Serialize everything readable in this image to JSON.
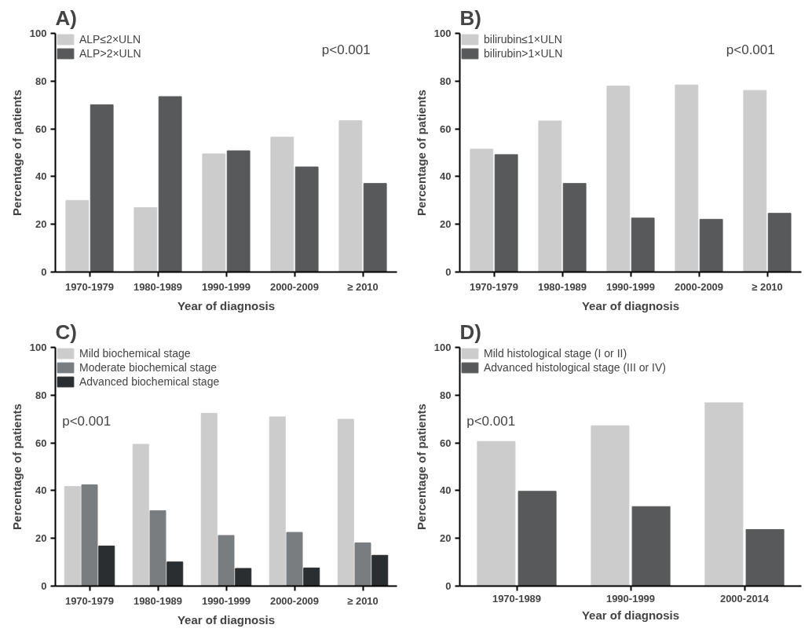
{
  "chart_data": [
    {
      "type": "bar",
      "title": "A)",
      "xlabel": "Year of diagnosis",
      "ylabel": "Percentage of patients",
      "categories": [
        "1970-1979",
        "1980-1989",
        "1990-1999",
        "2000-2009",
        "≥ 2010"
      ],
      "ylim": [
        0,
        100
      ],
      "yticks": [
        0,
        20,
        40,
        60,
        80,
        100
      ],
      "grid": false,
      "legend": "top left",
      "annotations": [
        "p<0.001"
      ],
      "series": [
        {
          "name": "ALP≤2×ULN",
          "color": "#cccccc",
          "values": [
            30,
            27,
            49.5,
            56.5,
            63.4
          ]
        },
        {
          "name": "ALP>2×ULN",
          "color": "#58595b",
          "values": [
            70.1,
            73.5,
            50.8,
            44,
            37.1
          ]
        }
      ]
    },
    {
      "type": "bar",
      "title": "B)",
      "xlabel": "Year of diagnosis",
      "ylabel": "Percentage of patients",
      "categories": [
        "1970-1979",
        "1980-1989",
        "1990-1999",
        "2000-2009",
        "≥ 2010"
      ],
      "ylim": [
        0,
        100
      ],
      "yticks": [
        0,
        20,
        40,
        60,
        80,
        100
      ],
      "grid": false,
      "legend": "top left",
      "annotations": [
        "p<0.001"
      ],
      "series": [
        {
          "name": "bilirubin≤1×ULN",
          "color": "#cccccc",
          "values": [
            51.5,
            63.3,
            77.9,
            78.4,
            76.1
          ]
        },
        {
          "name": "bilirubin>1×ULN",
          "color": "#58595b",
          "values": [
            49.2,
            37.1,
            22.6,
            22.1,
            24.6
          ]
        }
      ]
    },
    {
      "type": "bar",
      "title": "C)",
      "xlabel": "Year of diagnosis",
      "ylabel": "Percentage of patients",
      "categories": [
        "1970-1979",
        "1980-1989",
        "1990-1999",
        "2000-2009",
        "≥ 2010"
      ],
      "ylim": [
        0,
        100
      ],
      "yticks": [
        0,
        20,
        40,
        60,
        80,
        100
      ],
      "grid": false,
      "legend": "top left",
      "annotations": [
        "p<0.001"
      ],
      "series": [
        {
          "name": "Mild biochemical stage",
          "color": "#cccccc",
          "values": [
            41.7,
            59.4,
            72.4,
            70.9,
            69.9
          ]
        },
        {
          "name": "Moderate biochemical stage",
          "color": "#7a7d80",
          "values": [
            42.4,
            31.6,
            21.2,
            22.5,
            18.1
          ]
        },
        {
          "name": "Advanced biochemical stage",
          "color": "#2b2e31",
          "values": [
            16.8,
            10.1,
            7.4,
            7.6,
            12.9
          ]
        }
      ]
    },
    {
      "type": "bar",
      "title": "D)",
      "xlabel": "Year of diagnosis",
      "ylabel": "Percentage of patients",
      "categories": [
        "1970-1989",
        "1990-1999",
        "2000-2014"
      ],
      "ylim": [
        0,
        100
      ],
      "yticks": [
        0,
        20,
        40,
        60,
        80,
        100
      ],
      "grid": false,
      "legend": "top left",
      "annotations": [
        "p<0.001"
      ],
      "series": [
        {
          "name": "Mild histological stage (I or II)",
          "color": "#cccccc",
          "values": [
            60.6,
            67.2,
            76.8
          ]
        },
        {
          "name": "Advanced histological stage (III or IV)",
          "color": "#58595b",
          "values": [
            39.7,
            33.3,
            23.7
          ]
        }
      ]
    }
  ]
}
